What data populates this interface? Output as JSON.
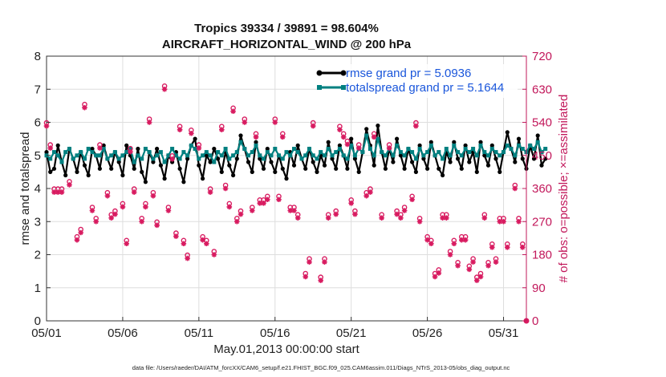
{
  "chart_data": {
    "type": "line",
    "title": "Tropics 39334 / 39891 = 98.604%",
    "subtitle": "AIRCRAFT_HORIZONTAL_WIND @ 200 hPa",
    "xlabel": "May.01,2013 00:00:00 start",
    "ylabel": "rmse and totalspread",
    "ylabel_right": "# of obs: o=possible; ×=assimilated",
    "footer": "data file: /Users/raeder/DAI/ATM_forcXX/CAM6_setup/f.e21.FHIST_BGC.f09_025.CAM6assim.011/Diags_NTrS_2013-05/obs_diag_output.nc",
    "x_tick_labels": [
      "05/01",
      "05/06",
      "05/11",
      "05/16",
      "05/21",
      "05/26",
      "05/31"
    ],
    "x_tick_days": [
      0,
      5,
      10,
      15,
      20,
      25,
      30
    ],
    "xlim": [
      0,
      31.5
    ],
    "ylim": [
      0,
      8
    ],
    "y_ticks": [
      0,
      1,
      2,
      3,
      4,
      5,
      6,
      7,
      8
    ],
    "ylim_right": [
      0,
      720
    ],
    "y_ticks_right": [
      0,
      90,
      180,
      270,
      360,
      450,
      540,
      630,
      720
    ],
    "x_step_days": 0.25,
    "grid": true,
    "legend_position": "top-right",
    "series": [
      {
        "name": "rmse grand pr = 5.0936",
        "color": "#000000",
        "values": [
          5.1,
          4.5,
          4.6,
          5.3,
          4.8,
          4.4,
          5.2,
          4.9,
          4.5,
          5.1,
          4.7,
          4.4,
          5.2,
          5.0,
          4.6,
          5.3,
          4.9,
          4.6,
          5.1,
          4.8,
          4.4,
          5.3,
          5.0,
          4.6,
          5.2,
          4.5,
          4.2,
          5.1,
          4.8,
          5.2,
          4.7,
          4.3,
          5.0,
          4.8,
          5.1,
          4.6,
          4.2,
          4.9,
          5.3,
          5.5,
          4.7,
          4.3,
          5.0,
          4.8,
          5.2,
          4.9,
          4.5,
          5.1,
          4.7,
          4.4,
          4.9,
          5.6,
          5.2,
          4.8,
          4.5,
          5.4,
          4.9,
          4.6,
          5.2,
          4.8,
          4.5,
          5.0,
          4.6,
          4.3,
          5.1,
          4.7,
          5.3,
          4.9,
          4.6,
          5.2,
          4.8,
          4.5,
          5.0,
          4.7,
          5.4,
          4.9,
          4.6,
          5.3,
          5.0,
          4.6,
          5.5,
          4.9,
          4.5,
          5.1,
          5.8,
          5.3,
          4.7,
          5.9,
          5.1,
          4.6,
          5.2,
          4.8,
          5.5,
          5.0,
          4.6,
          5.2,
          4.8,
          4.5,
          5.3,
          4.9,
          4.6,
          5.4,
          5.0,
          4.6,
          4.4,
          5.1,
          4.8,
          5.4,
          4.9,
          4.6,
          5.3,
          4.8,
          5.1,
          4.5,
          5.4,
          5.0,
          4.7,
          5.3,
          4.9,
          4.5,
          5.1,
          5.7,
          5.2,
          4.8,
          5.5,
          4.9,
          4.6,
          5.3,
          4.9,
          5.6,
          4.7,
          4.9
        ]
      },
      {
        "name": "totalspread grand pr = 5.1644",
        "color": "#008080",
        "values": [
          5.0,
          4.9,
          5.1,
          5.0,
          4.8,
          5.1,
          5.2,
          4.9,
          5.0,
          5.1,
          4.9,
          5.2,
          5.1,
          5.0,
          5.0,
          5.2,
          4.9,
          5.0,
          5.1,
          4.9,
          5.0,
          5.1,
          5.2,
          4.8,
          5.0,
          4.9,
          5.2,
          5.1,
          4.9,
          5.0,
          5.1,
          4.8,
          5.0,
          5.2,
          5.0,
          4.9,
          5.1,
          5.0,
          5.3,
          5.2,
          4.9,
          5.0,
          5.1,
          5.0,
          4.8,
          5.1,
          5.0,
          5.2,
          4.9,
          5.0,
          5.1,
          5.4,
          5.2,
          5.0,
          5.1,
          5.3,
          5.0,
          4.9,
          5.1,
          5.0,
          5.2,
          5.0,
          4.9,
          5.1,
          5.0,
          5.2,
          5.1,
          4.9,
          5.0,
          5.2,
          5.0,
          4.9,
          5.1,
          5.0,
          5.2,
          5.0,
          5.1,
          5.2,
          5.0,
          4.9,
          5.3,
          5.0,
          5.2,
          5.1,
          5.6,
          5.2,
          5.0,
          5.5,
          5.1,
          5.0,
          5.2,
          5.0,
          5.3,
          5.1,
          5.0,
          5.2,
          5.1,
          4.9,
          5.2,
          5.0,
          5.1,
          5.3,
          5.0,
          5.1,
          4.9,
          5.2,
          5.0,
          5.3,
          5.1,
          5.0,
          5.2,
          5.1,
          5.2,
          5.0,
          5.3,
          5.1,
          5.0,
          5.2,
          5.1,
          5.0,
          5.1,
          5.3,
          5.2,
          5.0,
          5.3,
          5.2,
          5.1,
          5.3,
          5.2,
          5.4,
          5.1,
          5.2
        ]
      }
    ],
    "obs_counts": {
      "color": "#d81b60",
      "axis": "right",
      "points": [
        [
          0.0,
          530
        ],
        [
          0.25,
          470
        ],
        [
          0.5,
          350
        ],
        [
          0.75,
          350
        ],
        [
          1.0,
          350
        ],
        [
          1.5,
          370
        ],
        [
          2.0,
          220
        ],
        [
          2.25,
          240
        ],
        [
          2.5,
          580
        ],
        [
          3.0,
          300
        ],
        [
          3.25,
          270
        ],
        [
          3.5,
          470
        ],
        [
          4.0,
          340
        ],
        [
          4.25,
          280
        ],
        [
          4.5,
          290
        ],
        [
          5.0,
          310
        ],
        [
          5.25,
          210
        ],
        [
          5.5,
          460
        ],
        [
          5.75,
          350
        ],
        [
          6.25,
          270
        ],
        [
          6.5,
          310
        ],
        [
          6.75,
          540
        ],
        [
          7.0,
          340
        ],
        [
          7.25,
          260
        ],
        [
          7.75,
          630
        ],
        [
          8.0,
          300
        ],
        [
          8.25,
          440
        ],
        [
          8.5,
          230
        ],
        [
          8.75,
          520
        ],
        [
          9.0,
          210
        ],
        [
          9.25,
          170
        ],
        [
          9.5,
          510
        ],
        [
          10.0,
          470
        ],
        [
          10.25,
          220
        ],
        [
          10.5,
          210
        ],
        [
          10.75,
          350
        ],
        [
          11.0,
          180
        ],
        [
          11.5,
          520
        ],
        [
          11.75,
          360
        ],
        [
          12.0,
          310
        ],
        [
          12.25,
          570
        ],
        [
          12.5,
          270
        ],
        [
          12.75,
          290
        ],
        [
          13.0,
          540
        ],
        [
          13.5,
          300
        ],
        [
          13.75,
          500
        ],
        [
          14.0,
          320
        ],
        [
          14.25,
          320
        ],
        [
          14.5,
          330
        ],
        [
          15.0,
          540
        ],
        [
          15.25,
          330
        ],
        [
          15.5,
          500
        ],
        [
          16.0,
          300
        ],
        [
          16.25,
          300
        ],
        [
          16.5,
          280
        ],
        [
          17.0,
          120
        ],
        [
          17.25,
          160
        ],
        [
          17.5,
          530
        ],
        [
          18.0,
          110
        ],
        [
          18.25,
          160
        ],
        [
          18.5,
          280
        ],
        [
          19.0,
          290
        ],
        [
          19.25,
          520
        ],
        [
          19.5,
          500
        ],
        [
          19.75,
          480
        ],
        [
          20.0,
          320
        ],
        [
          20.25,
          290
        ],
        [
          20.5,
          470
        ],
        [
          21.0,
          340
        ],
        [
          21.25,
          350
        ],
        [
          21.5,
          500
        ],
        [
          22.0,
          280
        ],
        [
          22.5,
          470
        ],
        [
          23.0,
          290
        ],
        [
          23.25,
          280
        ],
        [
          23.5,
          300
        ],
        [
          24.0,
          330
        ],
        [
          24.25,
          530
        ],
        [
          24.5,
          270
        ],
        [
          25.0,
          220
        ],
        [
          25.25,
          210
        ],
        [
          25.5,
          120
        ],
        [
          25.75,
          130
        ],
        [
          26.0,
          280
        ],
        [
          26.25,
          280
        ],
        [
          26.5,
          180
        ],
        [
          26.75,
          210
        ],
        [
          27.0,
          150
        ],
        [
          27.25,
          220
        ],
        [
          27.5,
          220
        ],
        [
          27.75,
          140
        ],
        [
          28.0,
          160
        ],
        [
          28.25,
          110
        ],
        [
          28.5,
          120
        ],
        [
          28.75,
          280
        ],
        [
          29.0,
          150
        ],
        [
          29.25,
          200
        ],
        [
          29.5,
          160
        ],
        [
          29.75,
          270
        ],
        [
          30.0,
          270
        ],
        [
          30.25,
          200
        ],
        [
          30.75,
          360
        ],
        [
          31.0,
          270
        ],
        [
          31.25,
          200
        ]
      ]
    }
  }
}
